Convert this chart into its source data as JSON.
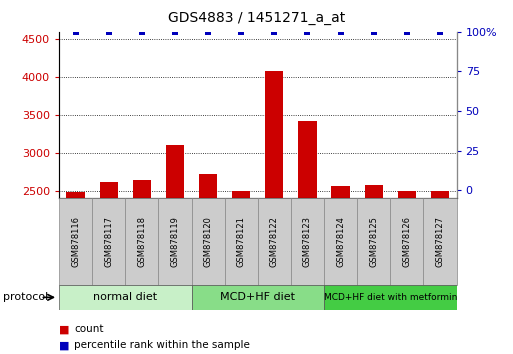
{
  "title": "GDS4883 / 1451271_a_at",
  "samples": [
    "GSM878116",
    "GSM878117",
    "GSM878118",
    "GSM878119",
    "GSM878120",
    "GSM878121",
    "GSM878122",
    "GSM878123",
    "GSM878124",
    "GSM878125",
    "GSM878126",
    "GSM878127"
  ],
  "counts": [
    2480,
    2620,
    2640,
    3110,
    2720,
    2500,
    4080,
    3420,
    2560,
    2580,
    2490,
    2490
  ],
  "percentile_ranks": [
    100,
    100,
    100,
    100,
    100,
    100,
    100,
    100,
    100,
    100,
    100,
    100
  ],
  "groups": [
    {
      "label": "normal diet",
      "start": 0,
      "end": 4,
      "color": "#c8f0c8"
    },
    {
      "label": "MCD+HF diet",
      "start": 4,
      "end": 8,
      "color": "#88dd88"
    },
    {
      "label": "MCD+HF diet with metformin",
      "start": 8,
      "end": 12,
      "color": "#44cc44"
    }
  ],
  "bar_color": "#cc0000",
  "dot_color": "#0000bb",
  "ylim_left": [
    2400,
    4600
  ],
  "ylim_right": [
    -5,
    100
  ],
  "yticks_left": [
    2500,
    3000,
    3500,
    4000,
    4500
  ],
  "yticks_right": [
    0,
    25,
    50,
    75,
    100
  ],
  "background_color": "#ffffff",
  "tick_label_color_left": "#cc0000",
  "tick_label_color_right": "#0000bb",
  "grid_color": "#000000",
  "sample_box_color": "#cccccc",
  "sample_box_edge": "#888888",
  "legend_count_label": "count",
  "legend_pct_label": "percentile rank within the sample"
}
